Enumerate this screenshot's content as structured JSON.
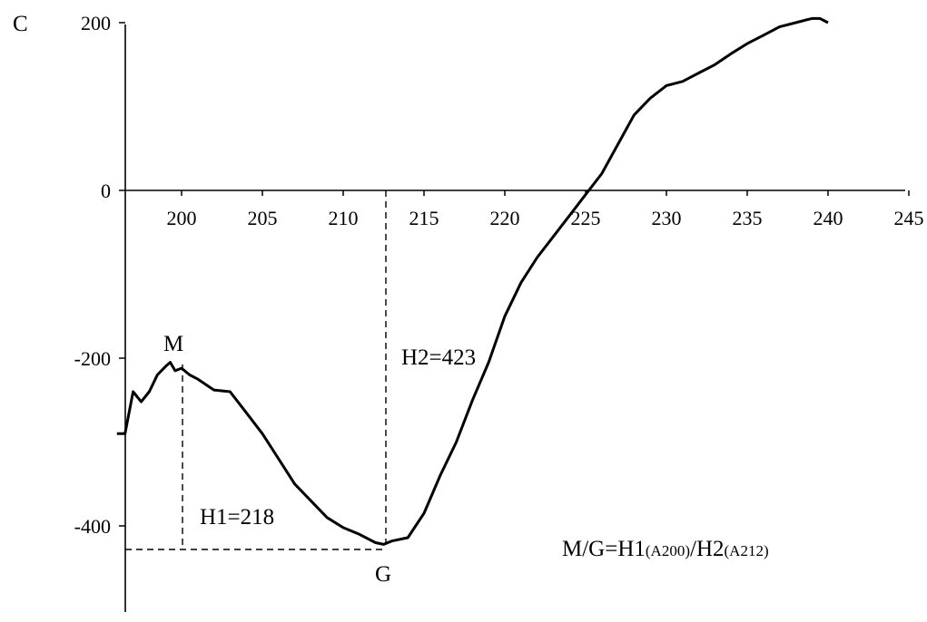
{
  "panel_label": "C",
  "chart_data": {
    "type": "line",
    "title": "",
    "xlabel": "",
    "ylabel": "",
    "xlim": [
      196,
      245
    ],
    "ylim": [
      -450,
      200
    ],
    "x_ticks": [
      200,
      205,
      210,
      215,
      220,
      225,
      230,
      235,
      240,
      245
    ],
    "y_ticks": [
      200,
      0,
      -200,
      -400
    ],
    "x_tick_labels": [
      "200",
      "205",
      "210",
      "215",
      "220",
      "225",
      "230",
      "235",
      "240",
      "245"
    ],
    "y_tick_labels": [
      "200",
      "0",
      "-200",
      "-400"
    ],
    "series": [
      {
        "name": "",
        "color": "#000000",
        "x": [
          196,
          196.5,
          197,
          197.5,
          198,
          198.5,
          199,
          199.3,
          199.6,
          200,
          200.5,
          201,
          202,
          203,
          204,
          205,
          206,
          207,
          208,
          209,
          210,
          211,
          212,
          212.5,
          213,
          214,
          215,
          216,
          217,
          218,
          219,
          220,
          221,
          222,
          223,
          224,
          225,
          226,
          227,
          228,
          229,
          230,
          231,
          232,
          233,
          234,
          235,
          236,
          237,
          238,
          239,
          239.5,
          240
        ],
        "y": [
          -290,
          -290,
          -240,
          -252,
          -240,
          -220,
          -210,
          -205,
          -215,
          -212,
          -220,
          -225,
          -238,
          -240,
          -265,
          -290,
          -320,
          -350,
          -370,
          -390,
          -402,
          -410,
          -420,
          -422,
          -418,
          -414,
          -385,
          -340,
          -300,
          -250,
          -205,
          -150,
          -110,
          -80,
          -55,
          -30,
          -5,
          20,
          55,
          90,
          110,
          125,
          130,
          140,
          150,
          163,
          175,
          185,
          195,
          200,
          205,
          205,
          200
        ]
      }
    ],
    "annotations": [
      {
        "text": "M",
        "x": 199.5,
        "y": -205
      },
      {
        "text": "G",
        "x": 212.5,
        "y": -423
      },
      {
        "text": "H1=218"
      },
      {
        "text": "H2=423"
      },
      {
        "text": "M/G=H1",
        "sub1": "(A200)",
        "mid": "/H2",
        "sub2": "(A212)"
      }
    ],
    "grid": false,
    "legend": "none"
  }
}
